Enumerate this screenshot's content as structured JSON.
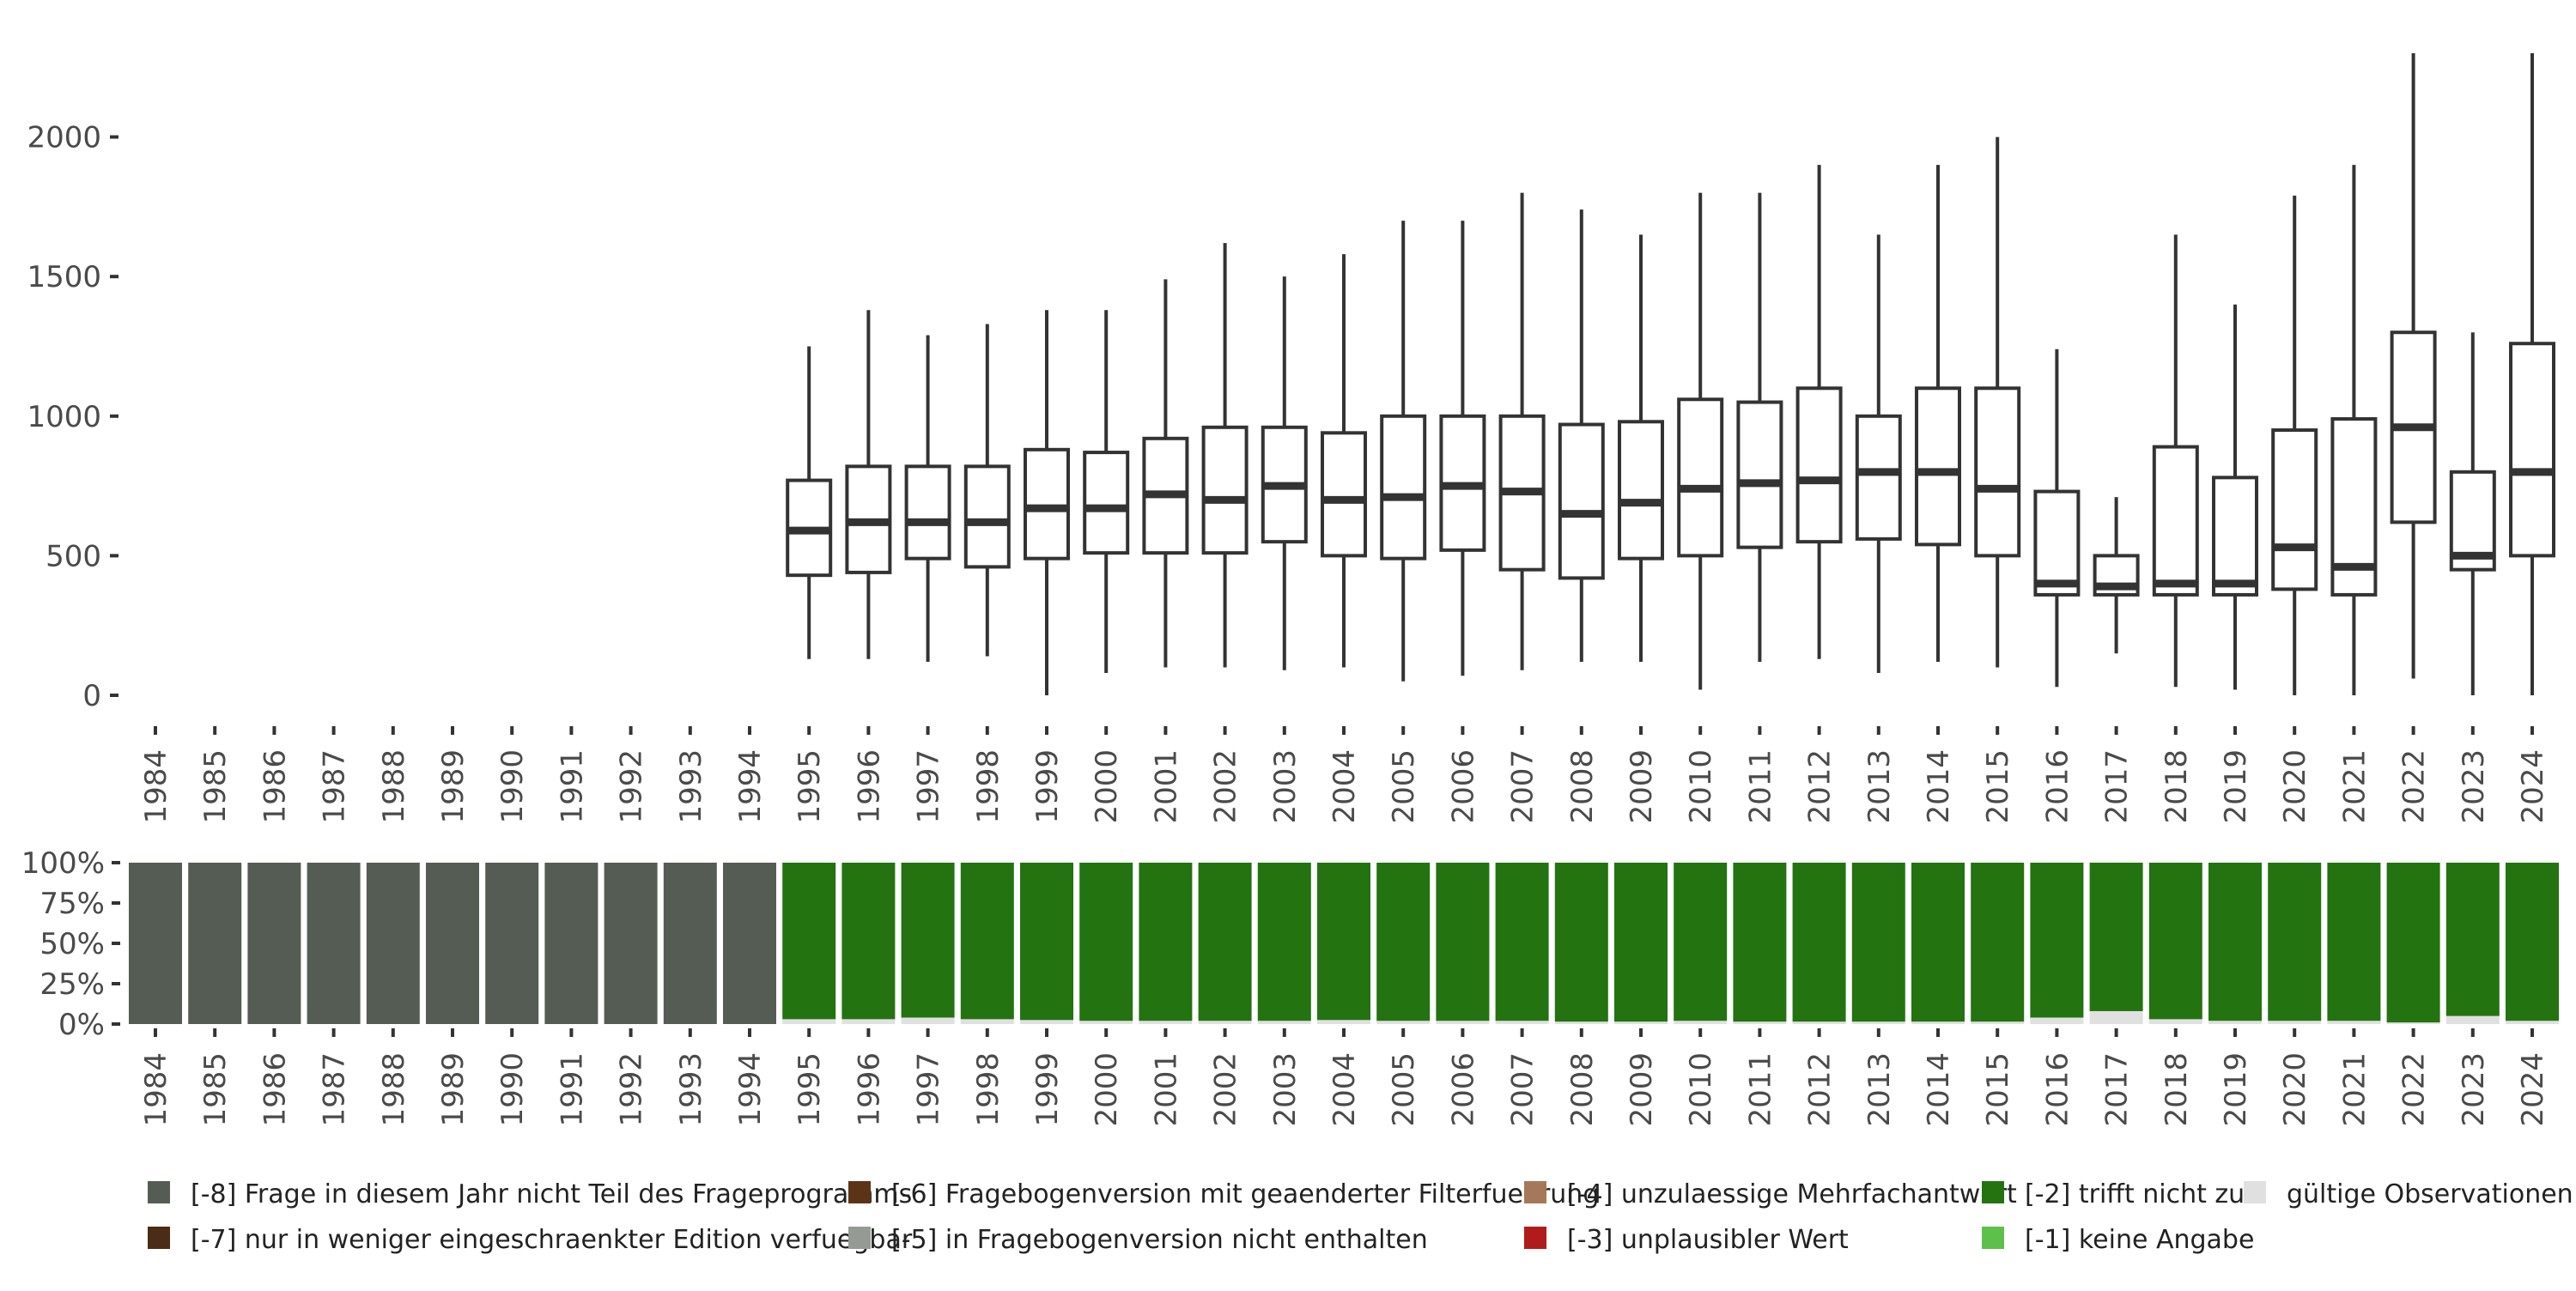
{
  "chart_data": [
    {
      "type": "box",
      "title": "",
      "xlabel": "",
      "ylabel": "",
      "ylim": [
        0,
        2300
      ],
      "yticks": [
        0,
        500,
        1000,
        1500,
        2000
      ],
      "ytick_labels": [
        "0",
        "500",
        "1000",
        "1500",
        "2000"
      ],
      "categories": [
        "1984",
        "1985",
        "1986",
        "1987",
        "1988",
        "1989",
        "1990",
        "1991",
        "1992",
        "1993",
        "1994",
        "1995",
        "1996",
        "1997",
        "1998",
        "1999",
        "2000",
        "2001",
        "2002",
        "2003",
        "2004",
        "2005",
        "2006",
        "2007",
        "2008",
        "2009",
        "2010",
        "2011",
        "2012",
        "2013",
        "2014",
        "2015",
        "2016",
        "2017",
        "2018",
        "2019",
        "2020",
        "2021",
        "2022",
        "2023",
        "2024"
      ],
      "boxes": [
        null,
        null,
        null,
        null,
        null,
        null,
        null,
        null,
        null,
        null,
        null,
        {
          "min": 130,
          "q1": 430,
          "median": 590,
          "q3": 770,
          "max": 1250
        },
        {
          "min": 130,
          "q1": 440,
          "median": 620,
          "q3": 820,
          "max": 1380
        },
        {
          "min": 120,
          "q1": 490,
          "median": 620,
          "q3": 820,
          "max": 1290
        },
        {
          "min": 140,
          "q1": 460,
          "median": 620,
          "q3": 820,
          "max": 1330
        },
        {
          "min": 0,
          "q1": 490,
          "median": 670,
          "q3": 880,
          "max": 1380
        },
        {
          "min": 80,
          "q1": 510,
          "median": 670,
          "q3": 870,
          "max": 1380
        },
        {
          "min": 100,
          "q1": 510,
          "median": 720,
          "q3": 920,
          "max": 1490
        },
        {
          "min": 100,
          "q1": 510,
          "median": 700,
          "q3": 960,
          "max": 1620
        },
        {
          "min": 90,
          "q1": 550,
          "median": 750,
          "q3": 960,
          "max": 1500
        },
        {
          "min": 100,
          "q1": 500,
          "median": 700,
          "q3": 940,
          "max": 1580
        },
        {
          "min": 50,
          "q1": 490,
          "median": 710,
          "q3": 1000,
          "max": 1700
        },
        {
          "min": 70,
          "q1": 520,
          "median": 750,
          "q3": 1000,
          "max": 1700
        },
        {
          "min": 90,
          "q1": 450,
          "median": 730,
          "q3": 1000,
          "max": 1800
        },
        {
          "min": 120,
          "q1": 420,
          "median": 650,
          "q3": 970,
          "max": 1740
        },
        {
          "min": 120,
          "q1": 490,
          "median": 690,
          "q3": 980,
          "max": 1650
        },
        {
          "min": 20,
          "q1": 500,
          "median": 740,
          "q3": 1060,
          "max": 1800
        },
        {
          "min": 120,
          "q1": 530,
          "median": 760,
          "q3": 1050,
          "max": 1800
        },
        {
          "min": 130,
          "q1": 550,
          "median": 770,
          "q3": 1100,
          "max": 1900
        },
        {
          "min": 80,
          "q1": 560,
          "median": 800,
          "q3": 1000,
          "max": 1650
        },
        {
          "min": 120,
          "q1": 540,
          "median": 800,
          "q3": 1100,
          "max": 1900
        },
        {
          "min": 100,
          "q1": 500,
          "median": 740,
          "q3": 1100,
          "max": 2000
        },
        {
          "min": 30,
          "q1": 360,
          "median": 400,
          "q3": 730,
          "max": 1240
        },
        {
          "min": 150,
          "q1": 360,
          "median": 390,
          "q3": 500,
          "max": 710
        },
        {
          "min": 30,
          "q1": 360,
          "median": 400,
          "q3": 890,
          "max": 1650
        },
        {
          "min": 20,
          "q1": 360,
          "median": 400,
          "q3": 780,
          "max": 1400
        },
        {
          "min": 0,
          "q1": 380,
          "median": 530,
          "q3": 950,
          "max": 1790
        },
        {
          "min": 0,
          "q1": 360,
          "median": 460,
          "q3": 990,
          "max": 1900
        },
        {
          "min": 60,
          "q1": 620,
          "median": 960,
          "q3": 1300,
          "max": 2300
        },
        {
          "min": 0,
          "q1": 450,
          "median": 500,
          "q3": 800,
          "max": 1300
        },
        {
          "min": 0,
          "q1": 500,
          "median": 800,
          "q3": 1260,
          "max": 2300
        }
      ]
    },
    {
      "type": "bar",
      "stacked": true,
      "title": "",
      "ylim": [
        0,
        1
      ],
      "yticks": [
        0,
        0.25,
        0.5,
        0.75,
        1
      ],
      "ytick_labels": [
        "0%",
        "25%",
        "50%",
        "75%",
        "100%"
      ],
      "categories": [
        "1984",
        "1985",
        "1986",
        "1987",
        "1988",
        "1989",
        "1990",
        "1991",
        "1992",
        "1993",
        "1994",
        "1995",
        "1996",
        "1997",
        "1998",
        "1999",
        "2000",
        "2001",
        "2002",
        "2003",
        "2004",
        "2005",
        "2006",
        "2007",
        "2008",
        "2009",
        "2010",
        "2011",
        "2012",
        "2013",
        "2014",
        "2015",
        "2016",
        "2017",
        "2018",
        "2019",
        "2020",
        "2021",
        "2022",
        "2023",
        "2024"
      ],
      "series": [
        {
          "name": "gültige Observationen",
          "color": "#e0e0e0",
          "values": [
            0,
            0,
            0,
            0,
            0,
            0,
            0,
            0,
            0,
            0,
            0,
            0.03,
            0.03,
            0.04,
            0.03,
            0.025,
            0.02,
            0.02,
            0.02,
            0.02,
            0.025,
            0.02,
            0.02,
            0.02,
            0.015,
            0.015,
            0.02,
            0.015,
            0.015,
            0.015,
            0.015,
            0.015,
            0.04,
            0.08,
            0.03,
            0.02,
            0.02,
            0.02,
            0.01,
            0.05,
            0.02
          ]
        },
        {
          "name": "[-2] trifft nicht zu",
          "color": "#237310",
          "values": [
            0,
            0,
            0,
            0,
            0,
            0,
            0,
            0,
            0,
            0,
            0,
            0.97,
            0.97,
            0.96,
            0.97,
            0.975,
            0.98,
            0.98,
            0.98,
            0.98,
            0.975,
            0.98,
            0.98,
            0.98,
            0.985,
            0.985,
            0.98,
            0.985,
            0.985,
            0.985,
            0.985,
            0.985,
            0.96,
            0.92,
            0.97,
            0.98,
            0.98,
            0.98,
            0.99,
            0.95,
            0.98
          ]
        },
        {
          "name": "[-8] Frage in diesem Jahr nicht Teil des Frageprogramms",
          "color": "#545c54",
          "values": [
            1,
            1,
            1,
            1,
            1,
            1,
            1,
            1,
            1,
            1,
            1,
            0,
            0,
            0,
            0,
            0,
            0,
            0,
            0,
            0,
            0,
            0,
            0,
            0,
            0,
            0,
            0,
            0,
            0,
            0,
            0,
            0,
            0,
            0,
            0,
            0,
            0,
            0,
            0,
            0,
            0
          ]
        }
      ]
    }
  ],
  "legend": {
    "items": [
      {
        "label": "[-8] Frage in diesem Jahr nicht Teil des Frageprogramms",
        "color": "#545c54"
      },
      {
        "label": "[-6] Fragebogenversion mit geaenderter Filterfuehrung",
        "color": "#5c3317"
      },
      {
        "label": "[-4] unzulaessige Mehrfachantwort",
        "color": "#a5785a"
      },
      {
        "label": "[-2] trifft nicht zu",
        "color": "#237310"
      },
      {
        "label": "gültige Observationen",
        "color": "#e0e0e0"
      },
      {
        "label": "[-7] nur in weniger eingeschraenkter Edition verfuegbar",
        "color": "#4a2c17"
      },
      {
        "label": "[-5] in Fragebogenversion nicht enthalten",
        "color": "#959b94"
      },
      {
        "label": "[-3] unplausibler Wert",
        "color": "#b01c1c"
      },
      {
        "label": "[-1] keine Angabe",
        "color": "#5cc04a"
      }
    ]
  },
  "colors": {
    "box_stroke": "#333333",
    "axis_text": "#4a4a4a"
  }
}
